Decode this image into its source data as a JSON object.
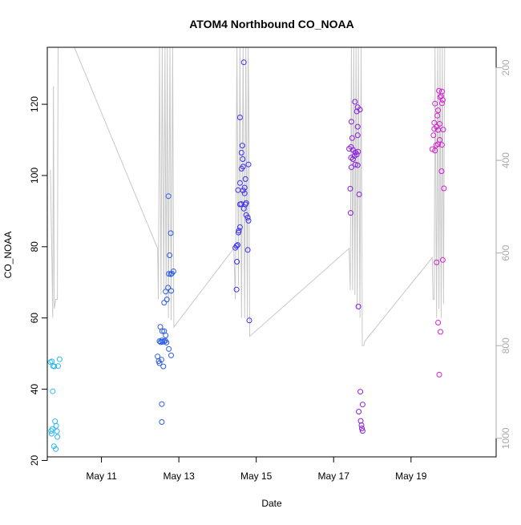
{
  "chart_data": {
    "type": "scatter",
    "title": "ATOM4 Northbound CO_NOAA",
    "xlabel": "Date",
    "ylabel": "CO_NOAA",
    "x_units": "days (May 2017)",
    "xlim": [
      9.6,
      21.2
    ],
    "ylim": [
      21,
      136
    ],
    "x_ticks": [
      {
        "value": 11,
        "label": "May 11"
      },
      {
        "value": 13,
        "label": "May 13"
      },
      {
        "value": 15,
        "label": "May 15"
      },
      {
        "value": 17,
        "label": "May 17"
      },
      {
        "value": 19,
        "label": "May 19"
      }
    ],
    "y_ticks": [
      20,
      40,
      60,
      80,
      100,
      120
    ],
    "secondary_axis": {
      "side": "right",
      "lim": [
        156,
        1040
      ],
      "inverted": true,
      "ticks": [
        200,
        400,
        600,
        800,
        1000
      ],
      "color": "#aaaaaa"
    },
    "grid": false,
    "legend": "none",
    "series": [
      {
        "color": "#29b6f6",
        "points": [
          [
            9.68,
            47.6
          ],
          [
            9.72,
            47.8
          ],
          [
            9.75,
            46.5
          ],
          [
            9.78,
            46.4
          ],
          [
            9.88,
            46.5
          ],
          [
            9.92,
            48.4
          ],
          [
            9.74,
            39.4
          ],
          [
            9.7,
            28.3
          ],
          [
            9.71,
            27.5
          ],
          [
            9.73,
            28.8
          ],
          [
            9.8,
            31.0
          ],
          [
            9.83,
            29.7
          ],
          [
            9.85,
            28.2
          ],
          [
            9.86,
            26.6
          ],
          [
            9.77,
            24.0
          ],
          [
            9.82,
            23.2
          ]
        ]
      },
      {
        "color": "#2a5be8",
        "points": [
          [
            12.45,
            49.2
          ],
          [
            12.48,
            47.9
          ],
          [
            12.5,
            47.3
          ],
          [
            12.55,
            48.3
          ],
          [
            12.6,
            46.4
          ],
          [
            12.5,
            53.5
          ],
          [
            12.53,
            53.2
          ],
          [
            12.56,
            53.7
          ],
          [
            12.58,
            53.3
          ],
          [
            12.62,
            53.4
          ],
          [
            12.65,
            53.6
          ],
          [
            12.68,
            53.1
          ],
          [
            12.52,
            57.5
          ],
          [
            12.57,
            56.3
          ],
          [
            12.62,
            56.3
          ],
          [
            12.66,
            55.1
          ],
          [
            12.74,
            51.3
          ],
          [
            12.8,
            49.5
          ],
          [
            12.62,
            64.3
          ],
          [
            12.69,
            65.2
          ],
          [
            12.66,
            67.4
          ],
          [
            12.72,
            68.5
          ],
          [
            12.74,
            72.4
          ],
          [
            12.79,
            72.3
          ],
          [
            12.82,
            72.5
          ],
          [
            12.86,
            73.1
          ],
          [
            12.8,
            67.6
          ],
          [
            12.76,
            77.6
          ],
          [
            12.79,
            83.8
          ],
          [
            12.73,
            94.2
          ],
          [
            12.56,
            35.8
          ],
          [
            12.56,
            30.8
          ]
        ]
      },
      {
        "color": "#3b2ef0",
        "points": [
          [
            14.46,
            79.7
          ],
          [
            14.49,
            80.2
          ],
          [
            14.52,
            80.5
          ],
          [
            14.5,
            75.8
          ],
          [
            14.49,
            68.0
          ],
          [
            14.55,
            84.5
          ],
          [
            14.58,
            85.5
          ],
          [
            14.54,
            84.0
          ],
          [
            14.58,
            91.9
          ],
          [
            14.61,
            92.0
          ],
          [
            14.53,
            95.9
          ],
          [
            14.58,
            97.9
          ],
          [
            14.66,
            95.8
          ],
          [
            14.7,
            96.6
          ],
          [
            14.68,
            90.7
          ],
          [
            14.72,
            91.9
          ],
          [
            14.74,
            92.3
          ],
          [
            14.7,
            95.0
          ],
          [
            14.62,
            101.9
          ],
          [
            14.66,
            102.5
          ],
          [
            14.65,
            104.6
          ],
          [
            14.62,
            106.4
          ],
          [
            14.64,
            108.4
          ],
          [
            14.72,
            99.0
          ],
          [
            14.8,
            103.1
          ],
          [
            14.74,
            88.9
          ],
          [
            14.78,
            88.2
          ],
          [
            14.8,
            87.3
          ],
          [
            14.78,
            79.1
          ],
          [
            14.82,
            59.3
          ],
          [
            14.58,
            116.3
          ],
          [
            14.68,
            131.8
          ]
        ]
      },
      {
        "color": "#8a1ee0",
        "points": [
          [
            17.4,
            107.5
          ],
          [
            17.45,
            108.0
          ],
          [
            17.5,
            107.2
          ],
          [
            17.56,
            106.5
          ],
          [
            17.63,
            106.7
          ],
          [
            17.45,
            105.0
          ],
          [
            17.5,
            104.6
          ],
          [
            17.54,
            105.5
          ],
          [
            17.6,
            105.9
          ],
          [
            17.46,
            102.3
          ],
          [
            17.56,
            103.1
          ],
          [
            17.62,
            102.9
          ],
          [
            17.43,
            96.3
          ],
          [
            17.66,
            94.7
          ],
          [
            17.44,
            89.5
          ],
          [
            17.48,
            110.5
          ],
          [
            17.62,
            111.3
          ],
          [
            17.46,
            115.1
          ],
          [
            17.62,
            113.7
          ],
          [
            17.6,
            118.0
          ],
          [
            17.55,
            120.7
          ],
          [
            17.62,
            119.2
          ],
          [
            17.68,
            118.5
          ],
          [
            17.64,
            63.2
          ],
          [
            17.69,
            39.3
          ],
          [
            17.75,
            35.7
          ],
          [
            17.65,
            33.7
          ],
          [
            17.7,
            31.1
          ],
          [
            17.72,
            29.9
          ],
          [
            17.73,
            29.0
          ],
          [
            17.75,
            28.3
          ]
        ]
      },
      {
        "color": "#d31fd0",
        "points": [
          [
            19.55,
            107.4
          ],
          [
            19.62,
            107.0
          ],
          [
            19.65,
            108.5
          ],
          [
            19.7,
            108.8
          ],
          [
            19.74,
            110.0
          ],
          [
            19.8,
            108.6
          ],
          [
            19.58,
            111.3
          ],
          [
            19.6,
            113.1
          ],
          [
            19.66,
            113.7
          ],
          [
            19.7,
            112.8
          ],
          [
            19.74,
            114.5
          ],
          [
            19.83,
            112.9
          ],
          [
            19.6,
            114.8
          ],
          [
            19.68,
            116.8
          ],
          [
            19.7,
            118.3
          ],
          [
            19.62,
            120.2
          ],
          [
            19.75,
            122.0
          ],
          [
            19.78,
            122.3
          ],
          [
            19.8,
            120.3
          ],
          [
            19.8,
            123.6
          ],
          [
            19.72,
            123.8
          ],
          [
            19.82,
            121.2
          ],
          [
            19.79,
            101.2
          ],
          [
            19.85,
            96.4
          ],
          [
            19.66,
            75.6
          ],
          [
            19.82,
            76.3
          ],
          [
            19.7,
            58.7
          ],
          [
            19.76,
            56.1
          ],
          [
            19.73,
            44.1
          ]
        ]
      }
    ],
    "trace": {
      "color": "#c8c8c8",
      "axis": "secondary",
      "points": [
        [
          9.68,
          420
        ],
        [
          9.72,
          620
        ],
        [
          9.74,
          740
        ],
        [
          9.76,
          240
        ],
        [
          9.78,
          720
        ],
        [
          9.82,
          700
        ],
        [
          9.86,
          700
        ],
        [
          9.88,
          140
        ],
        [
          9.95,
          140
        ],
        [
          10.3,
          140
        ],
        [
          12.45,
          590
        ],
        [
          12.47,
          700
        ],
        [
          12.5,
          140
        ],
        [
          12.54,
          690
        ],
        [
          12.57,
          140
        ],
        [
          12.61,
          680
        ],
        [
          12.64,
          140
        ],
        [
          12.67,
          700
        ],
        [
          12.7,
          140
        ],
        [
          12.73,
          740
        ],
        [
          12.77,
          140
        ],
        [
          12.8,
          745
        ],
        [
          12.84,
          140
        ],
        [
          12.87,
          760
        ],
        [
          14.42,
          590
        ],
        [
          14.46,
          700
        ],
        [
          14.5,
          140
        ],
        [
          14.54,
          670
        ],
        [
          14.58,
          140
        ],
        [
          14.62,
          740
        ],
        [
          14.66,
          140
        ],
        [
          14.7,
          740
        ],
        [
          14.73,
          140
        ],
        [
          14.77,
          740
        ],
        [
          14.79,
          140
        ],
        [
          14.81,
          300
        ],
        [
          14.83,
          780
        ],
        [
          17.4,
          590
        ],
        [
          17.43,
          680
        ],
        [
          17.46,
          140
        ],
        [
          17.49,
          680
        ],
        [
          17.52,
          140
        ],
        [
          17.55,
          690
        ],
        [
          17.58,
          140
        ],
        [
          17.61,
          720
        ],
        [
          17.64,
          140
        ],
        [
          17.68,
          740
        ],
        [
          17.71,
          140
        ],
        [
          17.74,
          800
        ],
        [
          17.78,
          800
        ],
        [
          17.81,
          790
        ],
        [
          19.55,
          610
        ],
        [
          19.57,
          700
        ],
        [
          19.6,
          700
        ],
        [
          19.62,
          140
        ],
        [
          19.66,
          740
        ],
        [
          19.69,
          140
        ],
        [
          19.72,
          720
        ],
        [
          19.75,
          140
        ],
        [
          19.78,
          740
        ],
        [
          19.81,
          140
        ],
        [
          19.84,
          710
        ],
        [
          19.87,
          140
        ]
      ]
    }
  }
}
